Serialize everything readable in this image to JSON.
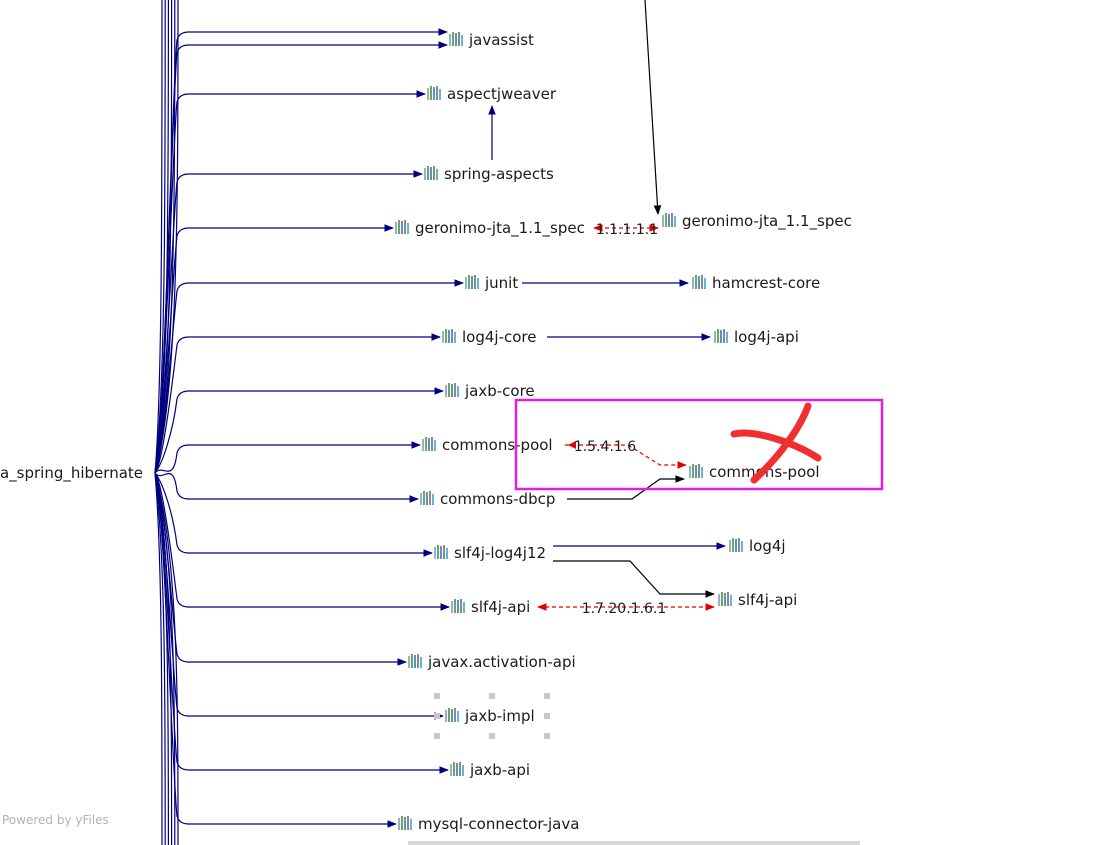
{
  "root": {
    "label": "va_spring_hibernate"
  },
  "nodes": [
    {
      "id": "javassist",
      "label": "javassist"
    },
    {
      "id": "aspectjweaver",
      "label": "aspectjweaver"
    },
    {
      "id": "spring-aspects",
      "label": "spring-aspects"
    },
    {
      "id": "geronimo-jta-left",
      "label": "geronimo-jta_1.1_spec"
    },
    {
      "id": "geronimo-jta-right",
      "label": "geronimo-jta_1.1_spec"
    },
    {
      "id": "junit",
      "label": "junit"
    },
    {
      "id": "hamcrest-core",
      "label": "hamcrest-core"
    },
    {
      "id": "log4j-core",
      "label": "log4j-core"
    },
    {
      "id": "log4j-api",
      "label": "log4j-api"
    },
    {
      "id": "jaxb-core",
      "label": "jaxb-core"
    },
    {
      "id": "commons-pool-left",
      "label": "commons-pool"
    },
    {
      "id": "commons-pool-right",
      "label": "commons-pool"
    },
    {
      "id": "commons-dbcp",
      "label": "commons-dbcp"
    },
    {
      "id": "slf4j-log4j12",
      "label": "slf4j-log4j12"
    },
    {
      "id": "log4j",
      "label": "log4j"
    },
    {
      "id": "slf4j-api-left",
      "label": "slf4j-api"
    },
    {
      "id": "slf4j-api-right",
      "label": "slf4j-api"
    },
    {
      "id": "javax-activation-api",
      "label": "javax.activation-api"
    },
    {
      "id": "jaxb-impl",
      "label": "jaxb-impl"
    },
    {
      "id": "jaxb-api",
      "label": "jaxb-api"
    },
    {
      "id": "mysql-connector-java",
      "label": "mysql-connector-java"
    }
  ],
  "conflict_labels": {
    "geronimo": "1.1.1.1.1",
    "commons_pool": "1.5.4.1.6",
    "slf4j": "1.7.20.1.6.1"
  },
  "colors": {
    "edge": "#00007f",
    "dependency_edge": "#000000",
    "conflict_edge": "#e00000",
    "highlight_box": "#e020e0",
    "annotation_x": "#f03030"
  },
  "footer": {
    "text": "Powered by yFiles"
  }
}
